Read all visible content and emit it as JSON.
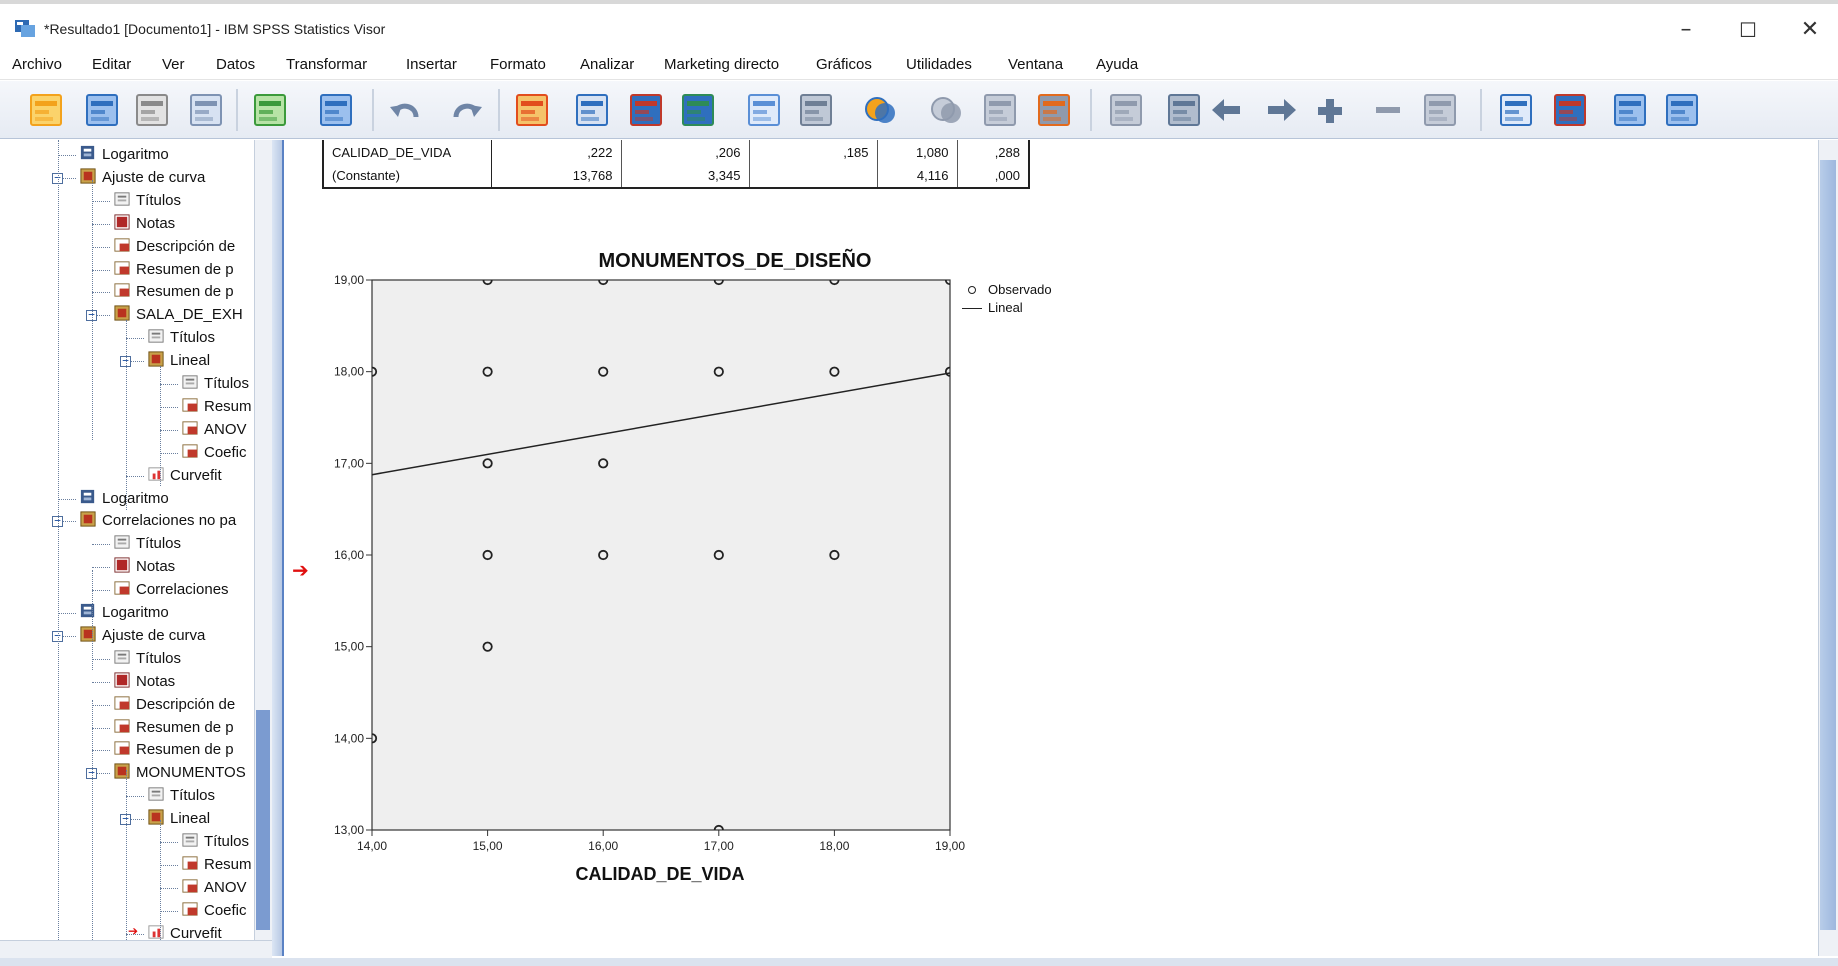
{
  "window": {
    "title": "*Resultado1 [Documento1] - IBM SPSS Statistics Visor",
    "minimize": "–",
    "maximize": "☐",
    "close": "✕"
  },
  "menu": [
    "Archivo",
    "Editar",
    "Ver",
    "Datos",
    "Transformar",
    "Insertar",
    "Formato",
    "Analizar",
    "Marketing directo",
    "Gráficos",
    "Utilidades",
    "Ventana",
    "Ayuda"
  ],
  "toolbar_icons": [
    "open-icon",
    "save-icon",
    "print-icon",
    "print-preview-icon",
    "export-icon",
    "recall-dialog-icon",
    "undo-icon",
    "redo-icon",
    "goto-data-icon",
    "goto-case-icon",
    "variables-icon",
    "select-cases-icon",
    "split-file-icon",
    "weight-cases-icon",
    "value-labels-icon",
    "use-sets-icon",
    "designate-window-icon",
    "show-all-icon",
    "hide-icon",
    "insert-output-icon",
    "promote-icon",
    "demote-icon",
    "expand-icon",
    "collapse-icon",
    "show-icon",
    "hide-output-icon",
    "insert-heading-icon",
    "insert-title-icon",
    "insert-text-icon"
  ],
  "outline": [
    {
      "label": "Logaritmo",
      "icon": "log-icon",
      "level": 1
    },
    {
      "label": "Ajuste de curva",
      "icon": "procedure-icon",
      "level": 1,
      "toggle": "−"
    },
    {
      "label": "Títulos",
      "icon": "title-icon",
      "level": 2
    },
    {
      "label": "Notas",
      "icon": "notes-icon",
      "level": 2
    },
    {
      "label": "Descripción de",
      "icon": "table-icon",
      "level": 2
    },
    {
      "label": "Resumen de p",
      "icon": "table-icon",
      "level": 2
    },
    {
      "label": "Resumen de p",
      "icon": "table-icon",
      "level": 2
    },
    {
      "label": "SALA_DE_EXH",
      "icon": "procedure-icon",
      "level": 2,
      "toggle": "−"
    },
    {
      "label": "Títulos",
      "icon": "title-icon",
      "level": 3
    },
    {
      "label": "Lineal",
      "icon": "procedure-icon",
      "level": 3,
      "toggle": "−"
    },
    {
      "label": "Títulos",
      "icon": "title-icon",
      "level": 4
    },
    {
      "label": "Resum",
      "icon": "table-icon",
      "level": 4
    },
    {
      "label": "ANOV",
      "icon": "table-icon",
      "level": 4
    },
    {
      "label": "Coefic",
      "icon": "table-icon",
      "level": 4
    },
    {
      "label": "Curvefit",
      "icon": "chart-icon",
      "level": 3
    },
    {
      "label": "Logaritmo",
      "icon": "log-icon",
      "level": 1
    },
    {
      "label": "Correlaciones no pa",
      "icon": "procedure-icon",
      "level": 1,
      "toggle": "−"
    },
    {
      "label": "Títulos",
      "icon": "title-icon",
      "level": 2
    },
    {
      "label": "Notas",
      "icon": "notes-icon",
      "level": 2
    },
    {
      "label": "Correlaciones",
      "icon": "table-icon",
      "level": 2
    },
    {
      "label": "Logaritmo",
      "icon": "log-icon",
      "level": 1
    },
    {
      "label": "Ajuste de curva",
      "icon": "procedure-icon",
      "level": 1,
      "toggle": "−"
    },
    {
      "label": "Títulos",
      "icon": "title-icon",
      "level": 2
    },
    {
      "label": "Notas",
      "icon": "notes-icon",
      "level": 2
    },
    {
      "label": "Descripción de",
      "icon": "table-icon",
      "level": 2
    },
    {
      "label": "Resumen de p",
      "icon": "table-icon",
      "level": 2
    },
    {
      "label": "Resumen de p",
      "icon": "table-icon",
      "level": 2
    },
    {
      "label": "MONUMENTOS",
      "icon": "procedure-icon",
      "level": 2,
      "toggle": "−"
    },
    {
      "label": "Títulos",
      "icon": "title-icon",
      "level": 3
    },
    {
      "label": "Lineal",
      "icon": "procedure-icon",
      "level": 3,
      "toggle": "−"
    },
    {
      "label": "Títulos",
      "icon": "title-icon",
      "level": 4
    },
    {
      "label": "Resum",
      "icon": "table-icon",
      "level": 4
    },
    {
      "label": "ANOV",
      "icon": "table-icon",
      "level": 4
    },
    {
      "label": "Coefic",
      "icon": "table-icon",
      "level": 4
    },
    {
      "label": "Curvefit",
      "icon": "chart-icon",
      "level": 3,
      "selected": true
    }
  ],
  "coefficients_table": {
    "rows": [
      {
        "label": "CALIDAD_DE_VIDA",
        "cells": [
          ",222",
          ",206",
          ",185",
          "1,080",
          ",288"
        ]
      },
      {
        "label": "(Constante)",
        "cells": [
          "13,768",
          "3,345",
          "",
          "4,116",
          ",000"
        ]
      }
    ]
  },
  "selection_marker": "➔",
  "chart_data": {
    "type": "scatter",
    "title": "MONUMENTOS_DE_DISEÑO",
    "xlabel": "CALIDAD_DE_VIDA",
    "ylabel": "",
    "xlim": [
      14,
      19
    ],
    "ylim": [
      13,
      19
    ],
    "x_ticks": [
      "14,00",
      "15,00",
      "16,00",
      "17,00",
      "18,00",
      "19,00"
    ],
    "y_ticks": [
      "13,00",
      "14,00",
      "15,00",
      "16,00",
      "17,00",
      "18,00",
      "19,00"
    ],
    "legend": [
      "Observado",
      "Lineal"
    ],
    "legend_position": "top-right",
    "observed": [
      {
        "x": 15,
        "y": 19
      },
      {
        "x": 16,
        "y": 19
      },
      {
        "x": 17,
        "y": 19
      },
      {
        "x": 18,
        "y": 19
      },
      {
        "x": 19,
        "y": 19
      },
      {
        "x": 14,
        "y": 18
      },
      {
        "x": 15,
        "y": 18
      },
      {
        "x": 16,
        "y": 18
      },
      {
        "x": 17,
        "y": 18
      },
      {
        "x": 18,
        "y": 18
      },
      {
        "x": 19,
        "y": 18
      },
      {
        "x": 15,
        "y": 17
      },
      {
        "x": 16,
        "y": 17
      },
      {
        "x": 15,
        "y": 16
      },
      {
        "x": 16,
        "y": 16
      },
      {
        "x": 17,
        "y": 16
      },
      {
        "x": 18,
        "y": 16
      },
      {
        "x": 15,
        "y": 15
      },
      {
        "x": 14,
        "y": 14
      },
      {
        "x": 17,
        "y": 13
      }
    ],
    "linear_fit": {
      "intercept": 13.768,
      "slope": 0.222
    },
    "plot_background": "#efefef",
    "marker_color": "#222222"
  }
}
